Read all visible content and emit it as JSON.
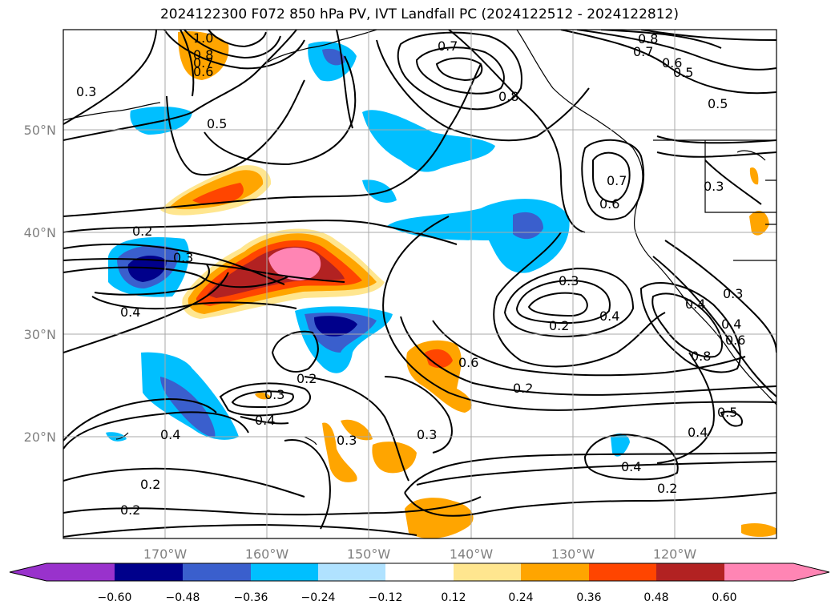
{
  "title": "2024122300 F072 850 hPa PV, IVT Landfall PC (2024122512 - 2024122812)",
  "lon_labels": [
    "170°W",
    "160°W",
    "150°W",
    "140°W",
    "130°W",
    "120°W"
  ],
  "lat_labels": [
    "50°N",
    "40°N",
    "30°N",
    "20°N"
  ],
  "colorbar": {
    "ticks": [
      "−0.60",
      "−0.48",
      "−0.36",
      "−0.24",
      "−0.12",
      "0.12",
      "0.24",
      "0.36",
      "0.48",
      "0.60"
    ],
    "colors": [
      "#9932cc",
      "#00008b",
      "#3a5fcd",
      "#00bfff",
      "#b0e2ff",
      "#ffffff",
      "#ffe68f",
      "#ffa500",
      "#ff4500",
      "#b22222",
      "#ff85b4"
    ]
  },
  "contour_labels": [
    "1.0",
    "0.8",
    "0.7",
    "0.6",
    "0.7",
    "0.8",
    "0.8",
    "0.7",
    "0.6",
    "0.5",
    "0.3",
    "0.5",
    "0.5",
    "0.3",
    "0.7",
    "0.6",
    "0.2",
    "0.3",
    "0.4",
    "0.3",
    "0.2",
    "0.4",
    "0.2",
    "0.6",
    "0.3",
    "0.4",
    "0.3",
    "0.4",
    "0.2",
    "0.4",
    "0.2",
    "0.4",
    "0.8",
    "0.6",
    "0.3",
    "0.5",
    "0.4",
    "0.4",
    "0.2",
    "0.2",
    "0.3"
  ]
}
